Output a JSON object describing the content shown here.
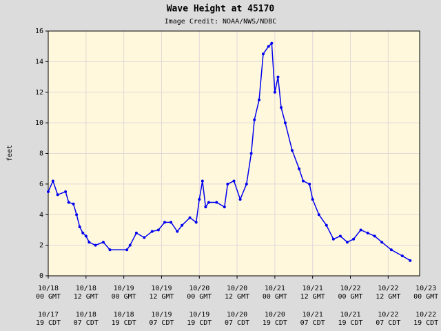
{
  "chart_data": {
    "type": "line",
    "title": "Wave Height at 45170",
    "subtitle": "Image Credit: NOAA/NWS/NDBC",
    "y_label": "feet",
    "x": [
      0,
      1.5,
      3,
      5.5,
      6.5,
      8,
      9,
      10,
      11,
      12,
      13,
      15,
      17.5,
      19.6,
      25,
      26,
      28,
      30.5,
      33,
      35,
      37,
      39,
      41,
      42.5,
      45,
      47,
      48,
      49,
      50,
      51,
      53.5,
      56,
      57,
      59,
      61,
      63,
      64.5,
      65.5,
      67,
      68.3,
      70,
      71,
      72,
      73,
      74,
      75.3,
      77.5,
      79.7,
      81,
      83,
      84,
      86,
      88.4,
      90.6,
      92.8,
      95,
      97,
      99.3,
      101.5,
      103.7,
      106,
      109,
      112.5,
      115
    ],
    "series": [
      {
        "name": "Wave Height",
        "color": "#0000ee",
        "values": [
          5.5,
          6.2,
          5.3,
          5.5,
          4.8,
          4.7,
          4.0,
          3.2,
          2.8,
          2.6,
          2.2,
          2.0,
          2.2,
          1.7,
          1.7,
          2.0,
          2.8,
          2.5,
          2.9,
          3.0,
          3.5,
          3.5,
          2.9,
          3.3,
          3.8,
          3.5,
          5.0,
          6.2,
          4.5,
          4.8,
          4.8,
          4.5,
          6.0,
          6.2,
          5.0,
          6.0,
          8.0,
          10.2,
          11.5,
          14.5,
          15.0,
          15.2,
          12.0,
          13.0,
          11.0,
          10.0,
          8.2,
          7.0,
          6.2,
          6.0,
          5.0,
          4.0,
          3.3,
          2.4,
          2.6,
          2.2,
          2.4,
          3.0,
          2.8,
          2.6,
          2.2,
          1.7,
          1.3,
          1.0
        ]
      }
    ],
    "xlim": [
      0,
      118
    ],
    "xticks": [
      {
        "value": 0,
        "label": "10/18",
        "sublabel": "00 GMT",
        "local": "10/17",
        "local_sub": "19 CDT"
      },
      {
        "value": 12,
        "label": "10/18",
        "sublabel": "12 GMT",
        "local": "10/18",
        "local_sub": "07 CDT"
      },
      {
        "value": 24,
        "label": "10/19",
        "sublabel": "00 GMT",
        "local": "10/18",
        "local_sub": "19 CDT"
      },
      {
        "value": 36,
        "label": "10/19",
        "sublabel": "12 GMT",
        "local": "10/19",
        "local_sub": "07 CDT"
      },
      {
        "value": 48,
        "label": "10/20",
        "sublabel": "00 GMT",
        "local": "10/19",
        "local_sub": "19 CDT"
      },
      {
        "value": 60,
        "label": "10/20",
        "sublabel": "12 GMT",
        "local": "10/20",
        "local_sub": "07 CDT"
      },
      {
        "value": 72,
        "label": "10/21",
        "sublabel": "00 GMT",
        "local": "10/20",
        "local_sub": "19 CDT"
      },
      {
        "value": 84,
        "label": "10/21",
        "sublabel": "12 GMT",
        "local": "10/21",
        "local_sub": "07 CDT"
      },
      {
        "value": 96,
        "label": "10/22",
        "sublabel": "00 GMT",
        "local": "10/21",
        "local_sub": "19 CDT"
      },
      {
        "value": 108,
        "label": "10/22",
        "sublabel": "12 GMT",
        "local": "10/22",
        "local_sub": "07 CDT"
      },
      {
        "value": 120,
        "label": "10/23",
        "sublabel": "00 GMT",
        "local": "10/22",
        "local_sub": "19 CDT"
      }
    ],
    "ylim": [
      0,
      16
    ],
    "yticks": [
      0,
      2,
      4,
      6,
      8,
      10,
      12,
      14,
      16
    ],
    "grid": true,
    "background": "#fff8dc"
  }
}
